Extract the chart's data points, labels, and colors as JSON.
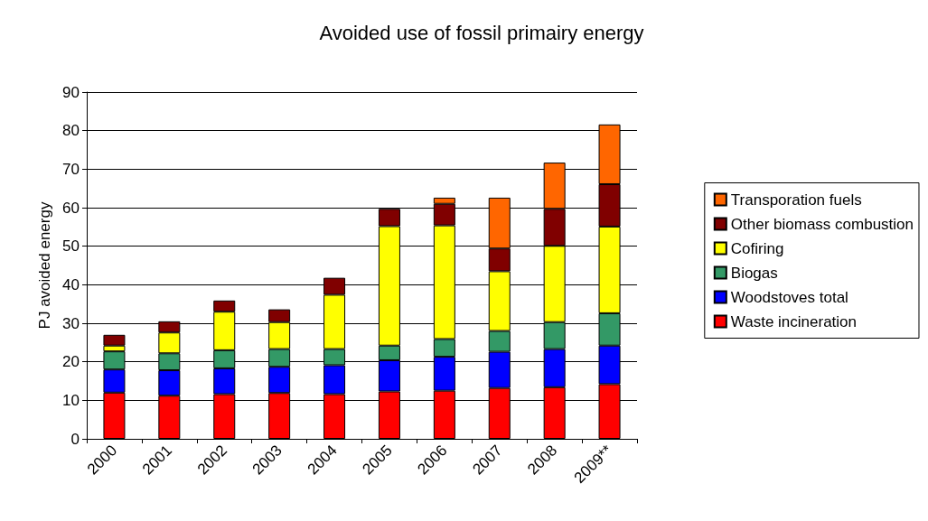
{
  "chart_data": {
    "type": "bar",
    "title": "Avoided use of fossil primairy energy",
    "ylabel": "PJ avoided energy",
    "categories": [
      "2000",
      "2001",
      "2002",
      "2003",
      "2004",
      "2005",
      "2006",
      "2007",
      "2008",
      "2009**"
    ],
    "stacked": true,
    "ylim": [
      0,
      90
    ],
    "yticks": [
      0,
      10,
      20,
      30,
      40,
      50,
      60,
      70,
      80,
      90
    ],
    "grid": "y",
    "legend": "right",
    "series": [
      {
        "name": "Waste incineration",
        "color": "#ff0000",
        "values": [
          12,
          11.2,
          11.6,
          11.9,
          11.6,
          12.3,
          12.5,
          13.2,
          13.4,
          14.2
        ]
      },
      {
        "name": "Woodstoves total",
        "color": "#0000ff",
        "values": [
          6,
          6.6,
          6.7,
          6.8,
          7.5,
          8.1,
          8.8,
          9.4,
          9.9,
          10
        ]
      },
      {
        "name": "Biogas",
        "color": "#339966",
        "values": [
          4.7,
          4.4,
          4.7,
          4.6,
          4.2,
          3.8,
          4.6,
          5.4,
          7,
          8.4
        ]
      },
      {
        "name": "Cofiring",
        "color": "#ffff00",
        "values": [
          1.5,
          5.4,
          10,
          7,
          14.1,
          31,
          29.5,
          15.5,
          19.8,
          22.5
        ]
      },
      {
        "name": "Other biomass combustion",
        "color": "#800000",
        "values": [
          2.8,
          2.9,
          2.9,
          3.3,
          4.4,
          4.5,
          5.6,
          5.9,
          9.6,
          11
        ]
      },
      {
        "name": "Transporation fuels",
        "color": "#ff6600",
        "values": [
          null,
          null,
          null,
          null,
          null,
          null,
          1.6,
          13.2,
          12,
          15.5
        ]
      }
    ]
  }
}
